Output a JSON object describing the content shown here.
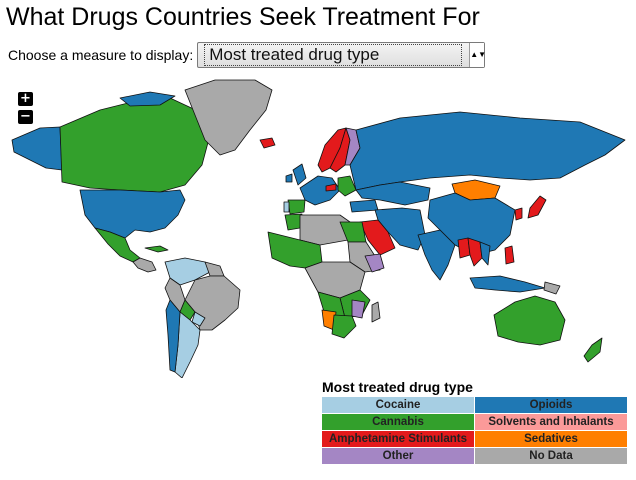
{
  "title": "What Drugs Countries Seek Treatment For",
  "measure": {
    "label": "Choose a measure to display:",
    "selected": "Most treated drug type",
    "arrow": "▲▼"
  },
  "zoom": {
    "in_label": "+",
    "out_label": "−"
  },
  "legend": {
    "title": "Most treated drug type",
    "items": [
      {
        "label": "Cocaine",
        "color": "#a6cee3"
      },
      {
        "label": "Opioids",
        "color": "#1f78b4"
      },
      {
        "label": "Cannabis",
        "color": "#33a02c"
      },
      {
        "label": "Solvents and Inhalants",
        "color": "#fb9a99"
      },
      {
        "label": "Amphetamine Stimulants",
        "color": "#e31a1c"
      },
      {
        "label": "Sedatives",
        "color": "#ff7f00"
      },
      {
        "label": "Other",
        "color": "#a486c4"
      },
      {
        "label": "No Data",
        "color": "#a9a9a9"
      }
    ]
  },
  "map_colors": {
    "cocaine": "#a6cee3",
    "opioids": "#1f78b4",
    "cannabis": "#33a02c",
    "amphetamine": "#e31a1c",
    "sedatives": "#ff7f00",
    "other": "#a486c4",
    "no_data": "#a9a9a9",
    "border": "#111111"
  }
}
